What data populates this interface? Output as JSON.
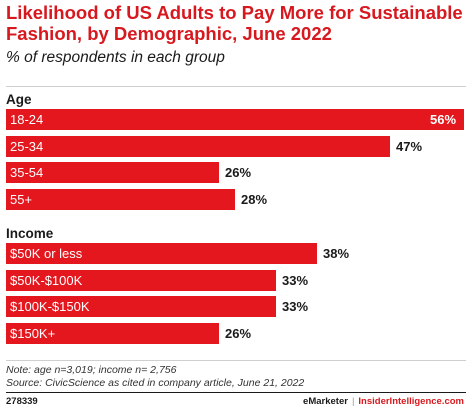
{
  "chart_data": {
    "type": "bar",
    "orientation": "horizontal",
    "title": "Likelihood of US Adults to Pay More for Sustainable Fashion, by Demographic, June 2022",
    "subtitle": "% of respondents in each group",
    "unit": "%",
    "xlim": [
      0,
      56
    ],
    "grid": false,
    "groups": [
      {
        "name": "Age",
        "categories": [
          "18-24",
          "25-34",
          "35-54",
          "55+"
        ],
        "values": [
          56,
          47,
          26,
          28
        ]
      },
      {
        "name": "Income",
        "categories": [
          "$50K or less",
          "$50K-$100K",
          "$100K-$150K",
          "$150K+"
        ],
        "values": [
          38,
          33,
          33,
          26
        ]
      }
    ]
  },
  "notes": {
    "note": "Note: age n=3,019; income n= 2,756",
    "source": "Source: CivicScience as cited in company article, June 21, 2022"
  },
  "footer": {
    "chart_id": "278339",
    "brand": "eMarketer",
    "separator": "|",
    "site": "InsiderIntelligence.com"
  },
  "colors": {
    "bar": "#e4171f",
    "title": "#d7191f"
  }
}
